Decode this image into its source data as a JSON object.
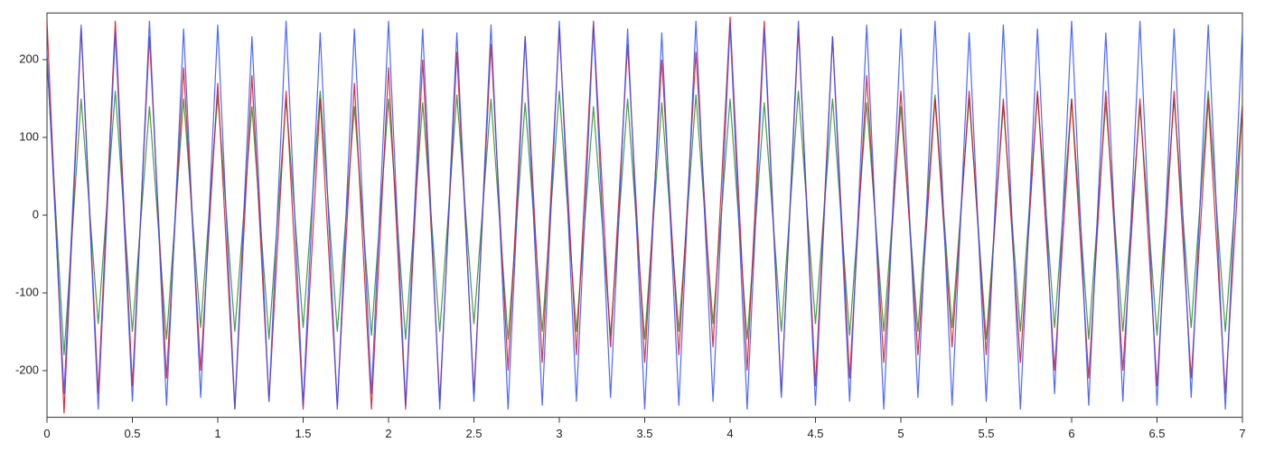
{
  "chart_data": {
    "type": "line",
    "x": [
      0,
      0.1,
      0.2,
      0.3,
      0.4,
      0.5,
      0.6,
      0.7,
      0.8,
      0.9,
      1,
      1.1,
      1.2,
      1.3,
      1.4,
      1.5,
      1.6,
      1.7,
      1.8,
      1.9,
      2,
      2.1,
      2.2,
      2.3,
      2.4,
      2.5,
      2.6,
      2.7,
      2.8,
      2.9,
      3,
      3.1,
      3.2,
      3.3,
      3.4,
      3.5,
      3.6,
      3.7,
      3.8,
      3.9,
      4,
      4.1,
      4.2,
      4.3,
      4.4,
      4.5,
      4.6,
      4.7,
      4.8,
      4.9,
      5,
      5.1,
      5.2,
      5.3,
      5.4,
      5.5,
      5.6,
      5.7,
      5.8,
      5.9,
      6,
      6.1,
      6.2,
      6.3,
      6.4,
      6.5,
      6.6,
      6.7,
      6.8,
      6.9,
      7
    ],
    "series": [
      {
        "color": "#2a8a2a",
        "values": [
          200,
          -180,
          150,
          -140,
          160,
          -150,
          140,
          -160,
          150,
          -145,
          155,
          -150,
          140,
          -160,
          150,
          -145,
          160,
          -150,
          140,
          -155,
          150,
          -160,
          145,
          -150,
          155,
          -140,
          150,
          -160,
          145,
          -150,
          160,
          -150,
          140,
          -155,
          150,
          -160,
          145,
          -150,
          155,
          -140,
          150,
          -160,
          145,
          -150,
          160,
          -140,
          150,
          -155,
          145,
          -150,
          140,
          -150,
          155,
          -145,
          150,
          -160,
          140,
          -150,
          155,
          -145,
          150,
          -160,
          145,
          -150,
          140,
          -155,
          150,
          -145,
          160,
          -150,
          145
        ]
      },
      {
        "color": "#d41020",
        "values": [
          250,
          -255,
          240,
          -230,
          250,
          -220,
          230,
          -210,
          190,
          -200,
          170,
          -250,
          180,
          -240,
          160,
          -250,
          150,
          -245,
          170,
          -250,
          190,
          -250,
          200,
          -240,
          210,
          -230,
          220,
          -200,
          230,
          -190,
          240,
          -180,
          250,
          -170,
          220,
          -190,
          200,
          -180,
          210,
          -170,
          255,
          -200,
          250,
          -230,
          240,
          -220,
          230,
          -210,
          180,
          -190,
          160,
          -180,
          150,
          -170,
          160,
          -180,
          150,
          -190,
          160,
          -200,
          150,
          -210,
          160,
          -200,
          150,
          -220,
          160,
          -210,
          150,
          -230,
          140
        ]
      },
      {
        "color": "#2f4dff",
        "values": [
          210,
          -230,
          245,
          -250,
          235,
          -240,
          250,
          -245,
          240,
          -235,
          245,
          -250,
          230,
          -240,
          250,
          -245,
          235,
          -250,
          240,
          -230,
          250,
          -245,
          240,
          -250,
          235,
          -240,
          245,
          -250,
          230,
          -245,
          250,
          -240,
          245,
          -235,
          240,
          -250,
          235,
          -245,
          250,
          -240,
          245,
          -250,
          240,
          -235,
          250,
          -245,
          230,
          -240,
          245,
          -250,
          240,
          -235,
          250,
          -245,
          235,
          -240,
          245,
          -250,
          240,
          -230,
          250,
          -245,
          235,
          -240,
          250,
          -245,
          240,
          -235,
          245,
          -250,
          240
        ]
      }
    ],
    "xlim": [
      0,
      7
    ],
    "ylim": [
      -260,
      260
    ],
    "xticks": [
      0,
      0.5,
      1,
      1.5,
      2,
      2.5,
      3,
      3.5,
      4,
      4.5,
      5,
      5.5,
      6,
      6.5,
      7
    ],
    "yticks": [
      -200,
      -100,
      0,
      100,
      200
    ]
  }
}
